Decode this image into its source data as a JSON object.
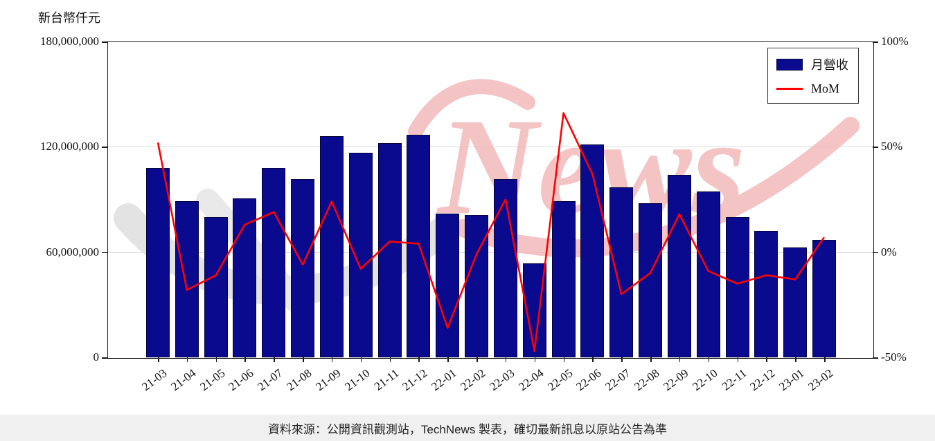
{
  "chart": {
    "y_axis_title": "新台幣仟元",
    "footer": "資料來源：公開資訊觀測站，TechNews 製表，確切最新訊息以原站公告為準"
  },
  "watermark": {
    "text": "News"
  },
  "legend": {
    "items": [
      {
        "label": "月營收",
        "type": "bar",
        "color": "#0a0a8e"
      },
      {
        "label": "MoM",
        "type": "line",
        "color": "#ff0000"
      }
    ]
  },
  "chart_data": {
    "type": "bar",
    "title": "",
    "categories": [
      "21-03",
      "21-04",
      "21-05",
      "21-06",
      "21-07",
      "21-08",
      "21-09",
      "21-10",
      "21-11",
      "21-12",
      "22-01",
      "22-02",
      "22-03",
      "22-04",
      "22-05",
      "22-06",
      "22-07",
      "22-08",
      "22-09",
      "22-10",
      "22-11",
      "22-12",
      "23-01",
      "23-02"
    ],
    "series": [
      {
        "name": "月營收",
        "type": "bar",
        "axis": "left",
        "color": "#0a0a8e",
        "values": [
          108000000,
          89000000,
          80000000,
          90500000,
          108000000,
          101500000,
          126000000,
          116500000,
          122000000,
          127000000,
          82000000,
          81000000,
          101500000,
          53500000,
          89000000,
          121500000,
          97000000,
          88000000,
          104000000,
          94500000,
          80000000,
          72000000,
          62500000,
          67000000
        ]
      },
      {
        "name": "MoM",
        "type": "line",
        "axis": "right",
        "color": "#ff0000",
        "values": [
          52,
          -18,
          -11,
          13,
          19,
          -6,
          24,
          -8,
          5,
          4,
          -36,
          -1,
          25,
          -47,
          66,
          37,
          -20,
          -10,
          18,
          -9,
          -15,
          -11,
          -13,
          7
        ]
      }
    ],
    "left_axis": {
      "label": "新台幣仟元",
      "min": 0,
      "max": 180000000,
      "ticks": [
        {
          "value": 0,
          "label": "0"
        },
        {
          "value": 60000000,
          "label": "60,000,000"
        },
        {
          "value": 120000000,
          "label": "120,000,000"
        },
        {
          "value": 180000000,
          "label": "180,000,000"
        }
      ]
    },
    "right_axis": {
      "min": -50,
      "max": 100,
      "ticks": [
        {
          "value": -50,
          "label": "-50%"
        },
        {
          "value": 0,
          "label": "0%"
        },
        {
          "value": 50,
          "label": "50%"
        },
        {
          "value": 100,
          "label": "100%"
        }
      ]
    },
    "grid": "horizontal (right-axis ticks), light gray",
    "legend_position": "upper right"
  }
}
